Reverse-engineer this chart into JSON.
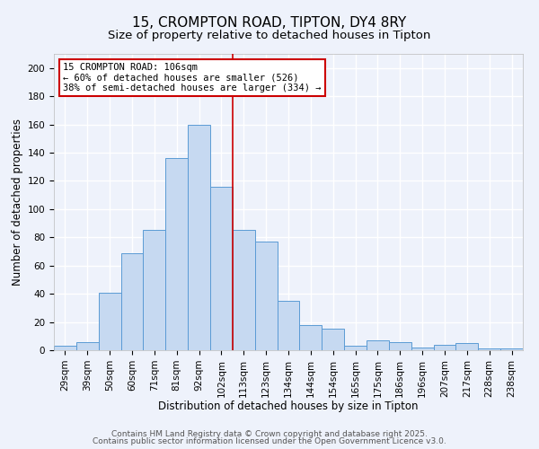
{
  "title": "15, CROMPTON ROAD, TIPTON, DY4 8RY",
  "subtitle": "Size of property relative to detached houses in Tipton",
  "xlabel": "Distribution of detached houses by size in Tipton",
  "ylabel": "Number of detached properties",
  "bin_labels": [
    "29sqm",
    "39sqm",
    "50sqm",
    "60sqm",
    "71sqm",
    "81sqm",
    "92sqm",
    "102sqm",
    "113sqm",
    "123sqm",
    "134sqm",
    "144sqm",
    "154sqm",
    "165sqm",
    "175sqm",
    "186sqm",
    "196sqm",
    "207sqm",
    "217sqm",
    "228sqm",
    "238sqm"
  ],
  "bar_values": [
    3,
    6,
    41,
    69,
    85,
    136,
    160,
    116,
    85,
    77,
    35,
    18,
    15,
    3,
    7,
    6,
    2,
    4,
    5,
    1,
    1
  ],
  "bar_color": "#c6d9f1",
  "bar_edge_color": "#5b9bd5",
  "vline_x": 7.5,
  "vline_color": "#cc0000",
  "annotation_line1": "15 CROMPTON ROAD: 106sqm",
  "annotation_line2": "← 60% of detached houses are smaller (526)",
  "annotation_line3": "38% of semi-detached houses are larger (334) →",
  "annotation_box_color": "#ffffff",
  "annotation_box_edge_color": "#cc0000",
  "ylim": [
    0,
    210
  ],
  "yticks": [
    0,
    20,
    40,
    60,
    80,
    100,
    120,
    140,
    160,
    180,
    200
  ],
  "footer1": "Contains HM Land Registry data © Crown copyright and database right 2025.",
  "footer2": "Contains public sector information licensed under the Open Government Licence v3.0.",
  "bg_color": "#eef2fb",
  "grid_color": "#ffffff",
  "title_fontsize": 11,
  "subtitle_fontsize": 9.5,
  "axis_label_fontsize": 8.5,
  "tick_fontsize": 7.5,
  "annotation_fontsize": 7.5,
  "footer_fontsize": 6.5
}
